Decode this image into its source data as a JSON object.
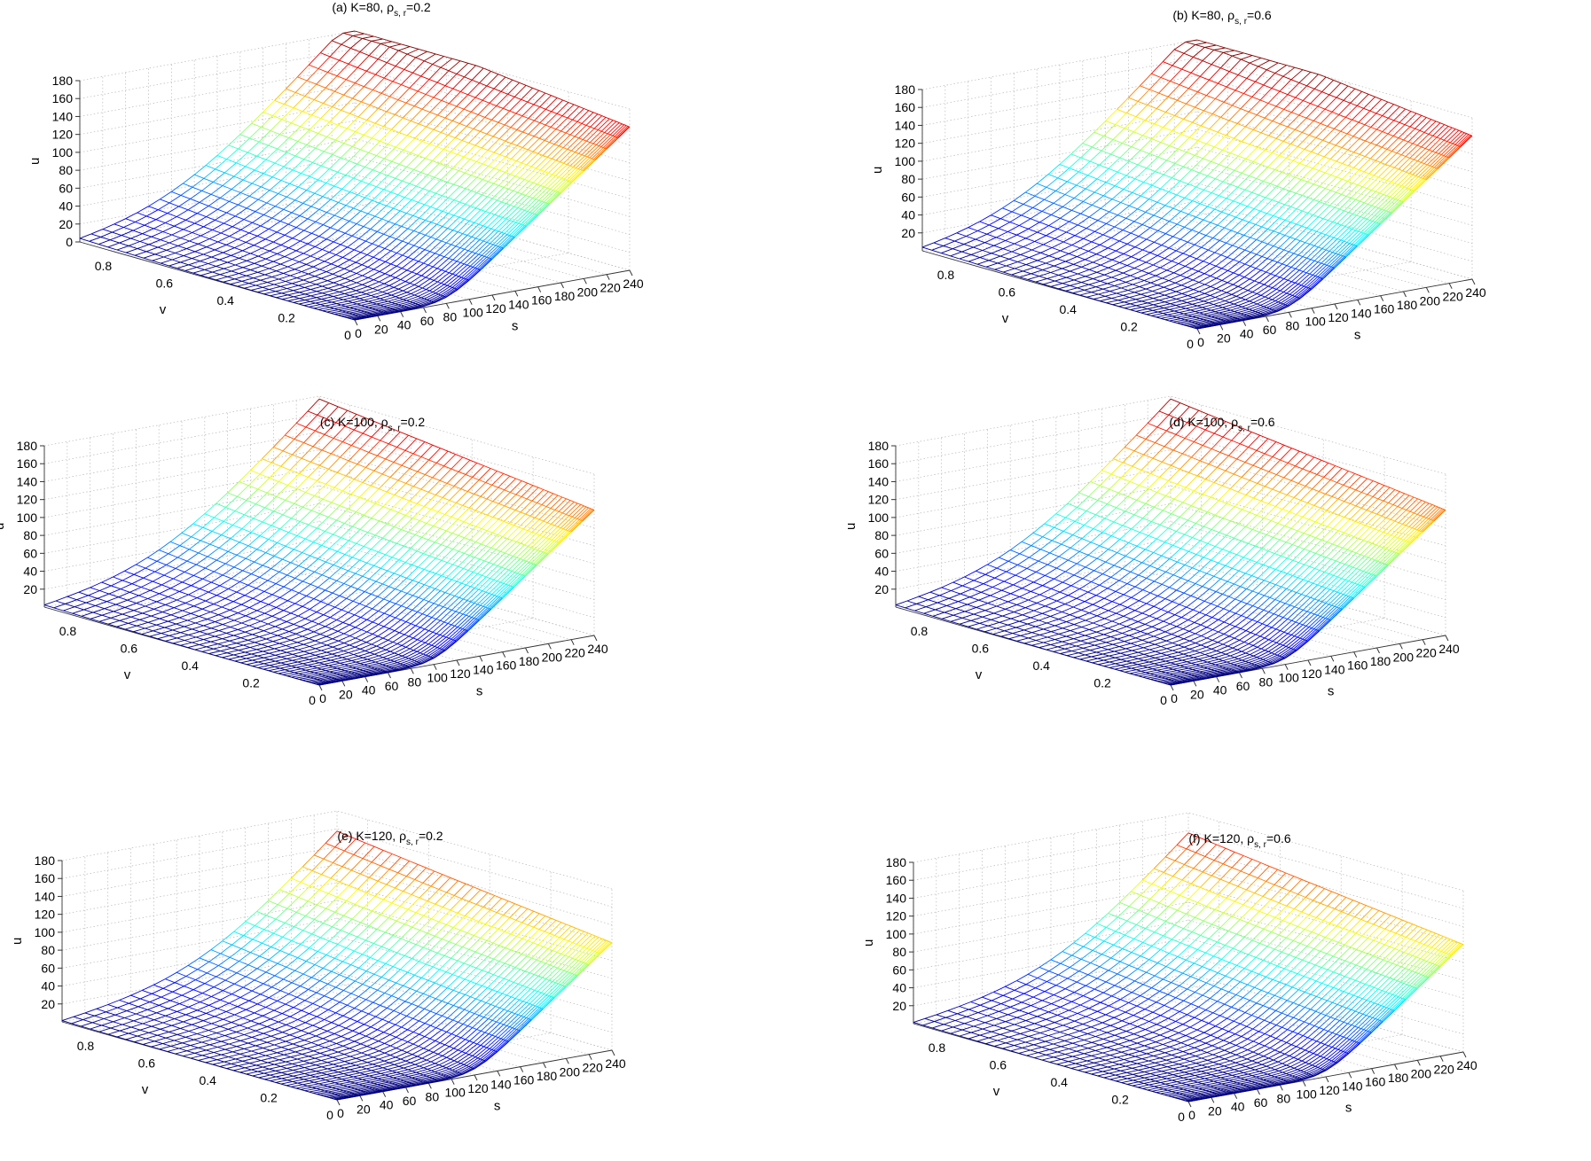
{
  "figure": {
    "panels": [
      {
        "prefix": "(a) K=80, ρ",
        "subscript": "s, r",
        "suffix": "=0.2",
        "zticks": [
          "0",
          "20",
          "40",
          "60",
          "80",
          "100",
          "120",
          "140",
          "160",
          "180"
        ]
      },
      {
        "prefix": "(b) K=80, ρ",
        "subscript": "s, r",
        "suffix": "=0.6",
        "zticks": [
          "20",
          "40",
          "60",
          "80",
          "100",
          "120",
          "140",
          "160",
          "180"
        ]
      },
      {
        "prefix": "(c) K=100, ρ",
        "subscript": "s, r",
        "suffix": "=0.2",
        "zticks": [
          "20",
          "40",
          "60",
          "80",
          "100",
          "120",
          "140",
          "160",
          "180"
        ]
      },
      {
        "prefix": "(d) K=100, ρ",
        "subscript": "s, r",
        "suffix": "=0.6",
        "zticks": [
          "20",
          "40",
          "60",
          "80",
          "100",
          "120",
          "140",
          "160",
          "180"
        ]
      },
      {
        "prefix": "(e) K=120, ρ",
        "subscript": "s, r",
        "suffix": "=0.2",
        "zticks": [
          "20",
          "40",
          "60",
          "80",
          "100",
          "120",
          "140",
          "160",
          "180"
        ]
      },
      {
        "prefix": "(f) K=120, ρ",
        "subscript": "s, r",
        "suffix": "=0.6",
        "zticks": [
          "20",
          "40",
          "60",
          "80",
          "100",
          "120",
          "140",
          "160",
          "180"
        ]
      }
    ],
    "xlabel": "s",
    "ylabel": "v",
    "zlabel": "u",
    "sticks": [
      "0",
      "20",
      "40",
      "60",
      "80",
      "100",
      "120",
      "140",
      "160",
      "180",
      "200",
      "220",
      "240"
    ],
    "vticks": [
      "0",
      "0.2",
      "0.4",
      "0.6",
      "0.8"
    ]
  },
  "chart_data": [
    {
      "type": "surface",
      "title": "(a) K=80, ρs, r=0.2",
      "strike": 80,
      "rho_sr": 0.2,
      "xlabel": "s",
      "ylabel": "v",
      "zlabel": "u",
      "xlim": [
        0,
        240
      ],
      "ylim": [
        0,
        0.9
      ],
      "zlim": [
        0,
        180
      ],
      "colormap": "jet",
      "grid": true
    },
    {
      "type": "surface",
      "title": "(b) K=80, ρs, r=0.6",
      "strike": 80,
      "rho_sr": 0.6,
      "xlabel": "s",
      "ylabel": "v",
      "zlabel": "u",
      "xlim": [
        0,
        240
      ],
      "ylim": [
        0,
        0.9
      ],
      "zlim": [
        0,
        180
      ],
      "colormap": "jet",
      "grid": true
    },
    {
      "type": "surface",
      "title": "(c) K=100, ρs, r=0.2",
      "strike": 100,
      "rho_sr": 0.2,
      "xlabel": "s",
      "ylabel": "v",
      "zlabel": "u",
      "xlim": [
        0,
        240
      ],
      "ylim": [
        0,
        0.9
      ],
      "zlim": [
        0,
        180
      ],
      "colormap": "jet",
      "grid": true
    },
    {
      "type": "surface",
      "title": "(d) K=100, ρs, r=0.6",
      "strike": 100,
      "rho_sr": 0.6,
      "xlabel": "s",
      "ylabel": "v",
      "zlabel": "u",
      "xlim": [
        0,
        240
      ],
      "ylim": [
        0,
        0.9
      ],
      "zlim": [
        0,
        180
      ],
      "colormap": "jet",
      "grid": true
    },
    {
      "type": "surface",
      "title": "(e) K=120, ρs, r=0.2",
      "strike": 120,
      "rho_sr": 0.2,
      "xlabel": "s",
      "ylabel": "v",
      "zlabel": "u",
      "xlim": [
        0,
        240
      ],
      "ylim": [
        0,
        0.9
      ],
      "zlim": [
        0,
        180
      ],
      "colormap": "jet",
      "grid": true
    },
    {
      "type": "surface",
      "title": "(f) K=120, ρs, r=0.6",
      "strike": 120,
      "rho_sr": 0.6,
      "xlabel": "s",
      "ylabel": "v",
      "zlabel": "u",
      "xlim": [
        0,
        240
      ],
      "ylim": [
        0,
        0.9
      ],
      "zlim": [
        0,
        180
      ],
      "colormap": "jet",
      "grid": true
    }
  ]
}
